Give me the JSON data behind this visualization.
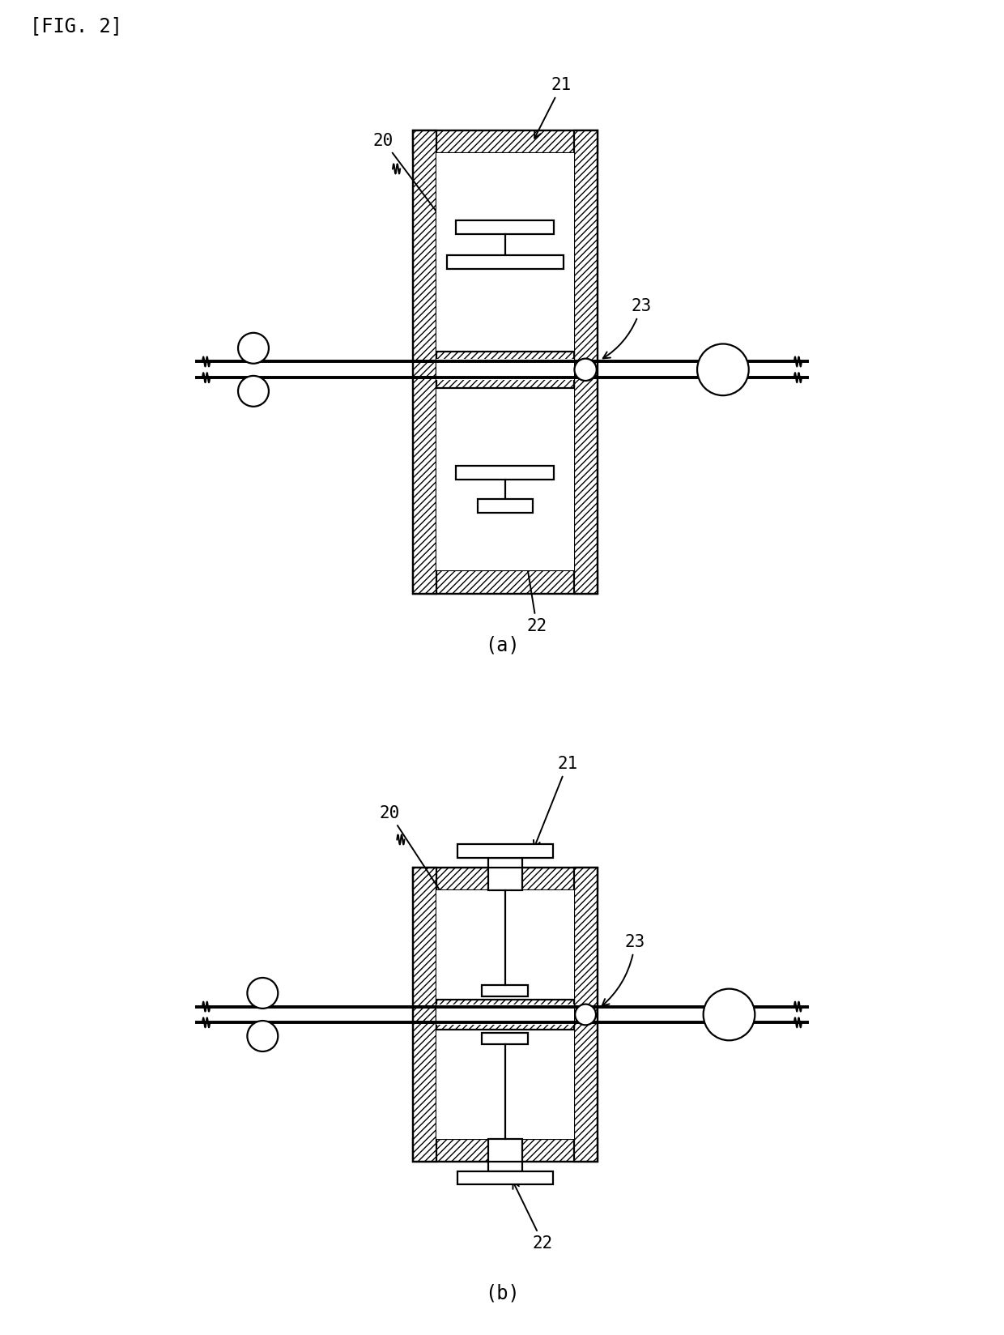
{
  "fig_label": "[FIG. 2]",
  "bg_color": "#ffffff",
  "lc": "#000000",
  "lw": 1.6,
  "label_a": "(a)",
  "label_b": "(b)"
}
